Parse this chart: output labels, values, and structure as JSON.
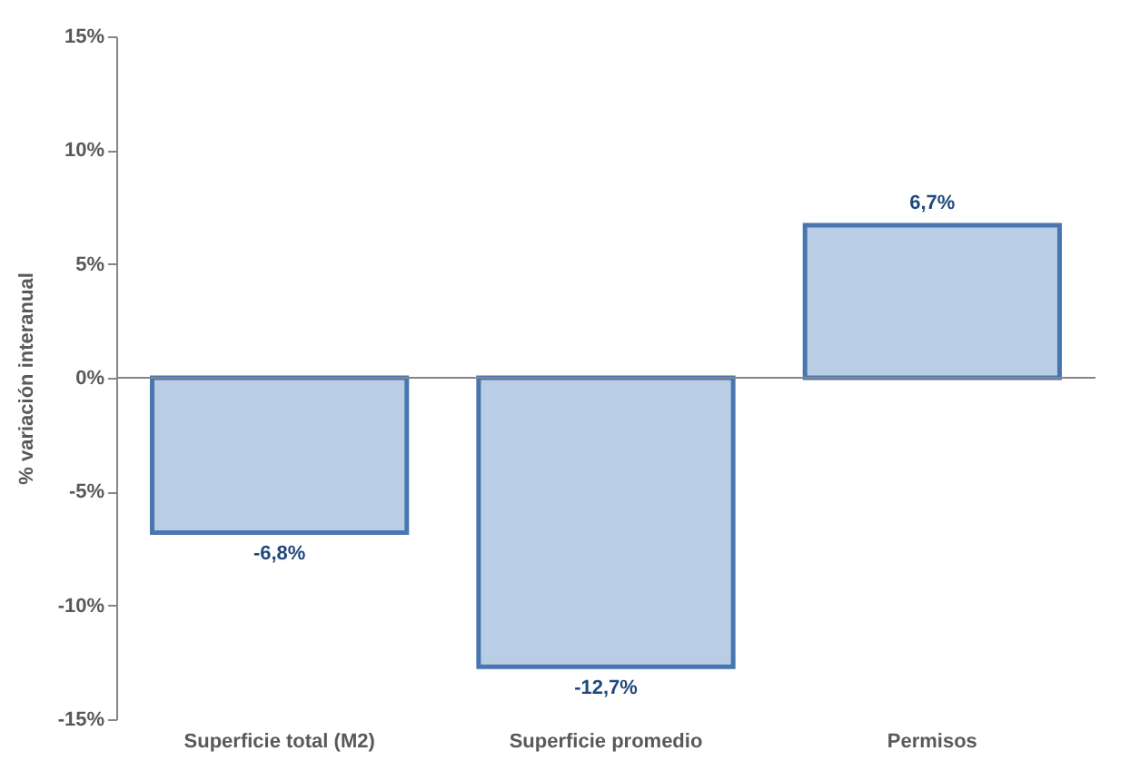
{
  "chart_data": {
    "type": "bar",
    "ylabel": "%  variación interanual",
    "categories": [
      "Superficie total (M2)",
      "Superficie promedio",
      "Permisos"
    ],
    "values": [
      -6.8,
      -12.7,
      6.7
    ],
    "value_labels": [
      "-6,8%",
      "-12,7%",
      "6,7%"
    ],
    "color": "#b9cde5",
    "ylim": [
      -15,
      15
    ],
    "yticks": [
      {
        "value": -15,
        "label": "-15%"
      },
      {
        "value": -10,
        "label": "-10%"
      },
      {
        "value": -5,
        "label": "-5%"
      },
      {
        "value": 0,
        "label": "0%"
      },
      {
        "value": 5,
        "label": "5%"
      },
      {
        "value": 10,
        "label": "10%"
      },
      {
        "value": 15,
        "label": "15%"
      }
    ],
    "ref_lines": [
      {
        "axis": "y",
        "value": 0,
        "color": "#868686"
      }
    ],
    "grid": false
  }
}
